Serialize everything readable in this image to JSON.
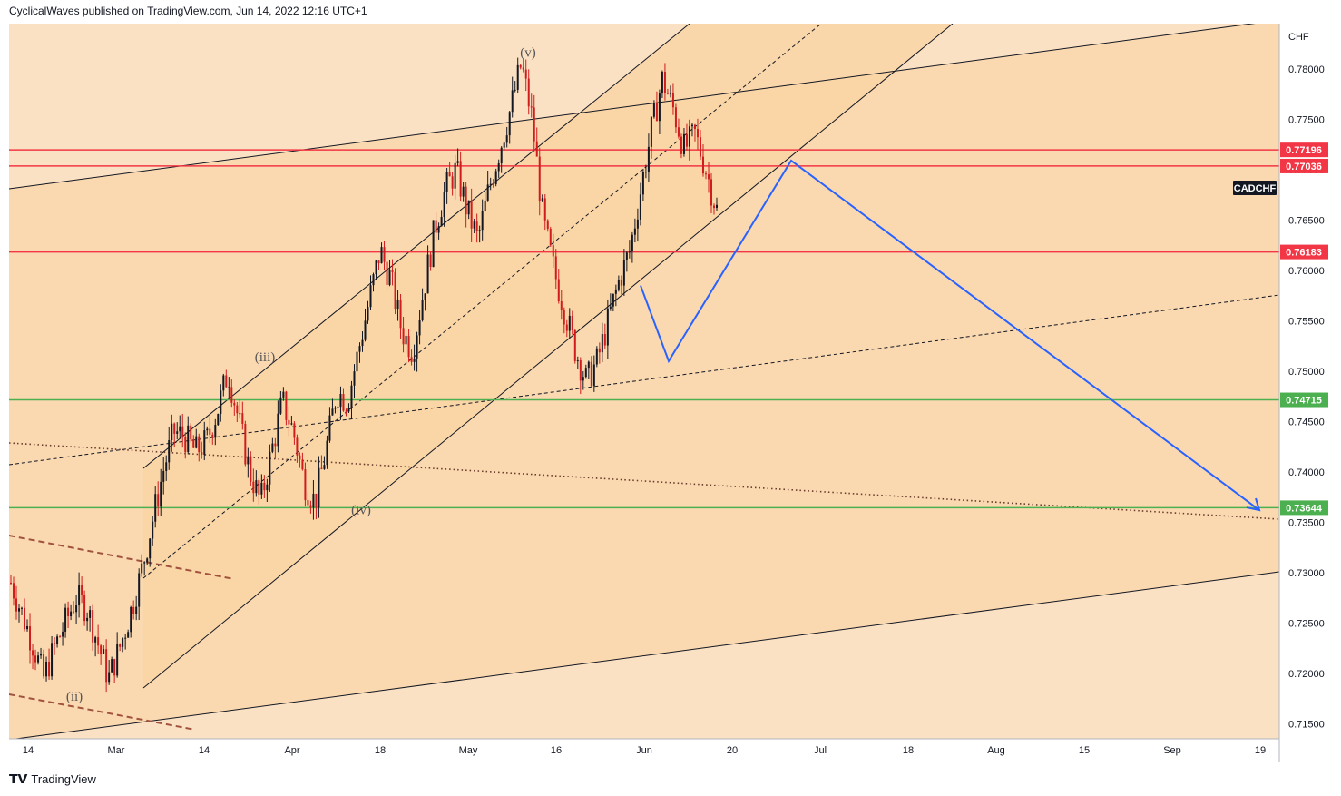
{
  "header": {
    "text": "CyclicalWaves published on TradingView.com, Jun 14, 2022 12:16 UTC+1"
  },
  "footer": {
    "brand": "TradingView",
    "logo_icon": "tradingview-logo-icon"
  },
  "colors": {
    "bg_dark": "#f9d3a3",
    "bg_light": "#fbe1c3",
    "resistance": "#f23645",
    "support": "#4caf50",
    "projection": "#2962ff",
    "candle_up": "#131722",
    "candle_down": "#d01c1c"
  },
  "chart_data": {
    "type": "candlestick",
    "symbol": "CADCHF",
    "currency": "CHF",
    "y_range": [
      0.7135,
      0.7845
    ],
    "y_ticks": [
      "0.78000",
      "0.77500",
      "0.77000",
      "0.76500",
      "0.76000",
      "0.75500",
      "0.75000",
      "0.74500",
      "0.74000",
      "0.73500",
      "0.73000",
      "0.72500",
      "0.72000",
      "0.71500"
    ],
    "x_ticks": [
      "14",
      "Mar",
      "14",
      "Apr",
      "18",
      "May",
      "16",
      "Jun",
      "20",
      "Jul",
      "18",
      "Aug",
      "15",
      "Sep",
      "19"
    ],
    "horizontal_levels": [
      {
        "label": "0.77196",
        "value": 0.77196,
        "kind": "resistance"
      },
      {
        "label": "0.77036",
        "value": 0.77036,
        "kind": "resistance"
      },
      {
        "label": "0.76183",
        "value": 0.76183,
        "kind": "resistance"
      },
      {
        "label": "0.74715",
        "value": 0.74715,
        "kind": "support"
      },
      {
        "label": "0.73644",
        "value": 0.73644,
        "kind": "support"
      }
    ],
    "wave_labels": [
      {
        "label": "(ii)",
        "value": 0.7173
      },
      {
        "label": "(iii)",
        "value": 0.751
      },
      {
        "label": "(iv)",
        "value": 0.7358
      },
      {
        "label": "(v)",
        "value": 0.7812
      }
    ],
    "projection_path": [
      0.7585,
      0.751,
      0.7709,
      0.7362
    ],
    "price_path": [
      0.729,
      0.726,
      0.723,
      0.7195,
      0.7225,
      0.725,
      0.7275,
      0.7265,
      0.723,
      0.7195,
      0.7225,
      0.726,
      0.73,
      0.735,
      0.74,
      0.744,
      0.7435,
      0.742,
      0.743,
      0.746,
      0.75,
      0.745,
      0.74,
      0.737,
      0.742,
      0.747,
      0.744,
      0.739,
      0.737,
      0.742,
      0.748,
      0.747,
      0.752,
      0.757,
      0.762,
      0.759,
      0.754,
      0.752,
      0.758,
      0.764,
      0.768,
      0.77,
      0.766,
      0.763,
      0.768,
      0.772,
      0.776,
      0.7805,
      0.775,
      0.765,
      0.76,
      0.756,
      0.752,
      0.749,
      0.751,
      0.755,
      0.759,
      0.762,
      0.768,
      0.774,
      0.779,
      0.776,
      0.772,
      0.7735,
      0.77,
      0.766
    ]
  },
  "legend_label": "CADCHF"
}
